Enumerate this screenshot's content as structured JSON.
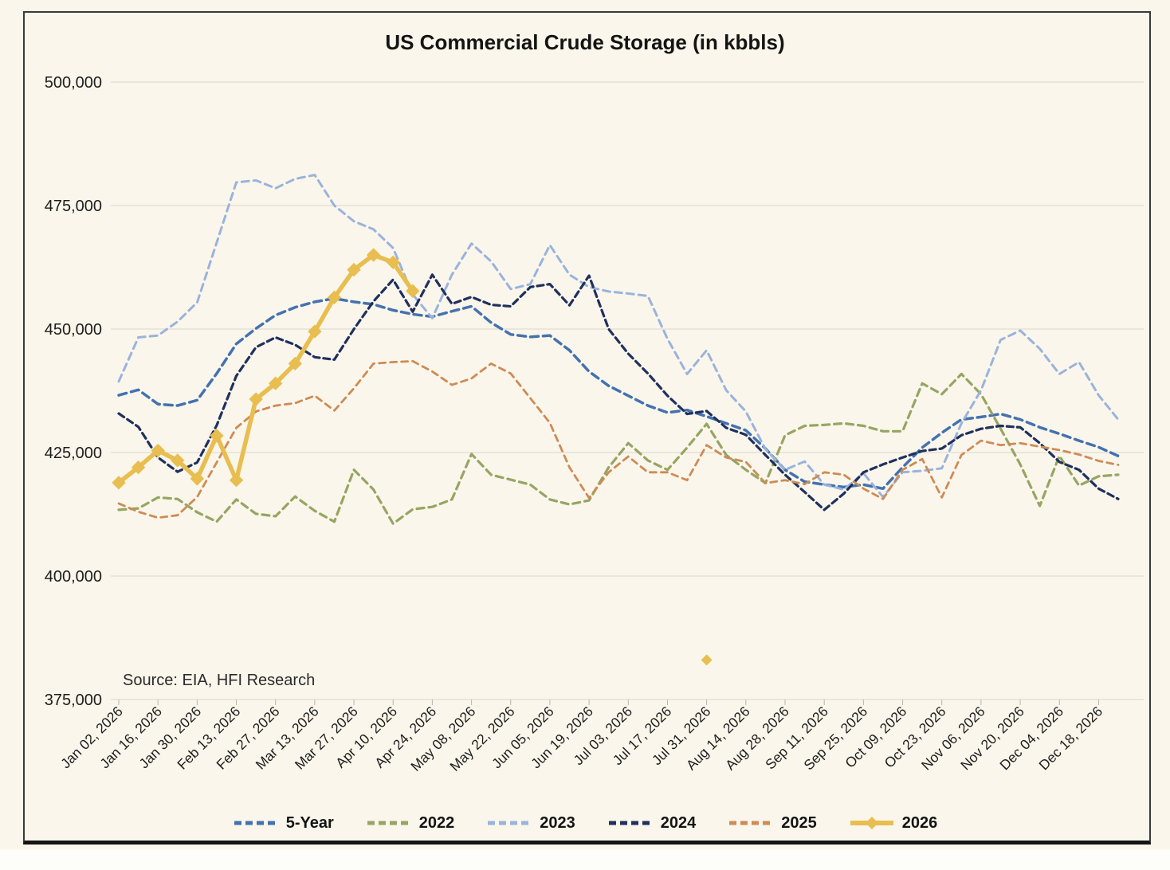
{
  "chart": {
    "title": "US Commercial Crude Storage (in kbbls)",
    "source_note": "Source: EIA, HFI Research",
    "y_axis": {
      "tick_labels": [
        "500,000",
        "475,000",
        "450,000",
        "425,000",
        "400,000",
        "375,000"
      ]
    },
    "x_axis": {
      "tick_labels": [
        "Jan 02, 2026",
        "Jan 16, 2026",
        "Jan 30, 2026",
        "Feb 13, 2026",
        "Feb 27, 2026",
        "Mar 13, 2026",
        "Mar 27, 2026",
        "Apr 10, 2026",
        "Apr 24, 2026",
        "May 08, 2026",
        "May 22, 2026",
        "Jun 05, 2026",
        "Jun 19, 2026",
        "Jul 03, 2026",
        "Jul 17, 2026",
        "Jul 31, 2026",
        "Aug 14, 2026",
        "Aug 28, 2026",
        "Sep 11, 2026",
        "Sep 25, 2026",
        "Oct 09, 2026",
        "Oct 23, 2026",
        "Nov 06, 2026",
        "Nov 20, 2026",
        "Dec 04, 2026",
        "Dec 18, 2026"
      ]
    },
    "colors": {
      "background": "#FAF6EB",
      "gridline": "#E4E1D8",
      "text": "#141414",
      "axis_tick": "#B8B5AC"
    }
  },
  "chart_data": {
    "type": "line",
    "title": "US Commercial Crude Storage (in kbbls)",
    "xlabel": "",
    "ylabel": "",
    "ylim": [
      375000,
      500000
    ],
    "y_step": 25000,
    "grid": "horizontal",
    "legend_position": "bottom",
    "weeks": [
      "Jan 02, 2026",
      "Jan 09, 2026",
      "Jan 16, 2026",
      "Jan 23, 2026",
      "Jan 30, 2026",
      "Feb 06, 2026",
      "Feb 13, 2026",
      "Feb 20, 2026",
      "Feb 27, 2026",
      "Mar 06, 2026",
      "Mar 13, 2026",
      "Mar 20, 2026",
      "Mar 27, 2026",
      "Apr 03, 2026",
      "Apr 10, 2026",
      "Apr 17, 2026",
      "Apr 24, 2026",
      "May 01, 2026",
      "May 08, 2026",
      "May 15, 2026",
      "May 22, 2026",
      "May 29, 2026",
      "Jun 05, 2026",
      "Jun 12, 2026",
      "Jun 19, 2026",
      "Jun 26, 2026",
      "Jul 03, 2026",
      "Jul 10, 2026",
      "Jul 17, 2026",
      "Jul 24, 2026",
      "Jul 31, 2026",
      "Aug 07, 2026",
      "Aug 14, 2026",
      "Aug 21, 2026",
      "Aug 28, 2026",
      "Sep 04, 2026",
      "Sep 11, 2026",
      "Sep 18, 2026",
      "Sep 25, 2026",
      "Oct 02, 2026",
      "Oct 09, 2026",
      "Oct 16, 2026",
      "Oct 23, 2026",
      "Oct 30, 2026",
      "Nov 06, 2026",
      "Nov 13, 2026",
      "Nov 20, 2026",
      "Nov 27, 2026",
      "Dec 04, 2026",
      "Dec 11, 2026",
      "Dec 18, 2026",
      "Dec 25, 2026"
    ],
    "series": [
      {
        "name": "5-Year",
        "color": "#4472B0",
        "style": "dashed",
        "dash": "10 6",
        "width": 3.5,
        "values": [
          436600,
          437700,
          434800,
          434500,
          435600,
          441000,
          447000,
          450100,
          452800,
          454400,
          455500,
          456200,
          455500,
          455000,
          453800,
          453000,
          452500,
          453600,
          454600,
          451300,
          448900,
          448400,
          448700,
          445700,
          441400,
          438500,
          436500,
          434500,
          433100,
          433600,
          432300,
          430900,
          429500,
          425800,
          421500,
          419100,
          418500,
          418000,
          418500,
          417700,
          422000,
          426000,
          429000,
          431700,
          432200,
          432800,
          431700,
          430100,
          428800,
          427400,
          426100,
          424300
        ]
      },
      {
        "name": "2022",
        "color": "#97A562",
        "style": "dashed",
        "dash": "9 6",
        "width": 3.2,
        "values": [
          413400,
          413700,
          415900,
          415600,
          412900,
          411000,
          415500,
          412600,
          412100,
          416100,
          413200,
          411000,
          421500,
          417500,
          410600,
          413500,
          414000,
          415500,
          424700,
          420500,
          419500,
          418500,
          415500,
          414500,
          415300,
          422000,
          426900,
          423400,
          421500,
          426000,
          430800,
          424500,
          421500,
          418800,
          428500,
          430400,
          430600,
          430900,
          430400,
          429300,
          429300,
          439000,
          436800,
          440900,
          436800,
          429800,
          422600,
          414200,
          424300,
          418300,
          420200,
          420500
        ]
      },
      {
        "name": "2023",
        "color": "#9AB3DC",
        "style": "dashed",
        "dash": "9 6",
        "width": 3,
        "values": [
          439400,
          448300,
          448700,
          451500,
          455400,
          467500,
          479700,
          480100,
          478500,
          480400,
          481200,
          475000,
          471800,
          470200,
          466400,
          457000,
          452200,
          461000,
          467300,
          463700,
          458100,
          459100,
          467000,
          461000,
          458500,
          457600,
          457200,
          456700,
          448000,
          440900,
          445700,
          437600,
          433300,
          425700,
          421500,
          423200,
          418500,
          417500,
          420800,
          416000,
          421000,
          421300,
          421800,
          430900,
          437600,
          447800,
          449700,
          446000,
          440900,
          443300,
          436600,
          431700
        ]
      },
      {
        "name": "2024",
        "color": "#20305E",
        "style": "dashed",
        "dash": "8 5",
        "width": 3.2,
        "values": [
          432900,
          430200,
          424000,
          421100,
          423000,
          430500,
          440500,
          446300,
          448300,
          446800,
          444300,
          443800,
          450000,
          455600,
          460000,
          453500,
          461000,
          455100,
          456500,
          454900,
          454600,
          458500,
          459100,
          454800,
          460800,
          450000,
          445000,
          441000,
          436500,
          432800,
          433400,
          430000,
          428600,
          424500,
          420500,
          417000,
          413400,
          416700,
          421000,
          422600,
          424000,
          425300,
          425800,
          428500,
          429800,
          430400,
          430100,
          426900,
          423100,
          421500,
          417700,
          415600
        ]
      },
      {
        "name": "2025",
        "color": "#CE8B55",
        "style": "dashed",
        "dash": "8 6",
        "width": 2.8,
        "values": [
          414700,
          413000,
          411800,
          412300,
          416000,
          423000,
          430000,
          433300,
          434500,
          435000,
          436500,
          433500,
          438000,
          443000,
          443300,
          443500,
          441400,
          438700,
          440000,
          443000,
          441000,
          436000,
          431000,
          422000,
          415800,
          421000,
          424200,
          421000,
          421000,
          419400,
          426500,
          424000,
          423100,
          418800,
          419400,
          418600,
          421000,
          420500,
          417700,
          415600,
          421500,
          423700,
          415900,
          424500,
          427400,
          426500,
          426900,
          426200,
          425500,
          424600,
          423300,
          422500
        ]
      },
      {
        "name": "2026",
        "color": "#E8BE50",
        "style": "solid-diamond",
        "dash": "",
        "width": 5.5,
        "values": [
          418900,
          422000,
          425400,
          423400,
          419700,
          428400,
          419400,
          435800,
          439000,
          443000,
          449500,
          456400,
          462000,
          465000,
          463500,
          457700
        ]
      }
    ],
    "outlier_point": {
      "series": "2026",
      "week": "Jul 31, 2026",
      "week_index": 30,
      "value": 383000
    }
  }
}
